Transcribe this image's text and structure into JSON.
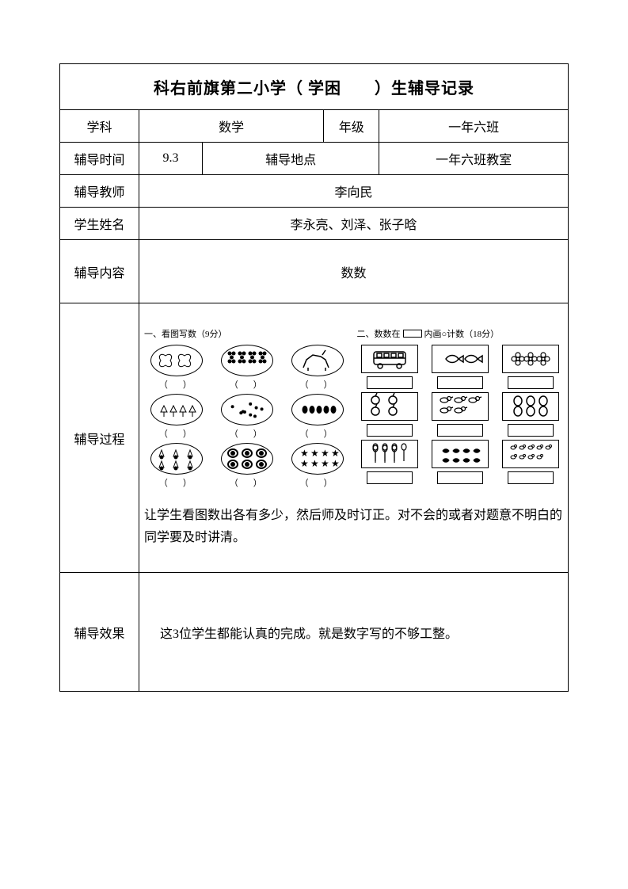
{
  "title": "科右前旗第二小学（ 学困　　）生辅导记录",
  "rows": {
    "subject": {
      "label": "学科",
      "value": "数学"
    },
    "grade": {
      "label": "年级",
      "value": "一年六班"
    },
    "time": {
      "label": "辅导时间",
      "value": "9.3"
    },
    "place": {
      "label": "辅导地点",
      "value": "一年六班教室"
    },
    "teacher": {
      "label": "辅导教师",
      "value": "李向民"
    },
    "student": {
      "label": "学生姓名",
      "value": "李永亮、刘泽、张子晗"
    },
    "content": {
      "label": "辅导内容",
      "value": "数数"
    },
    "process": {
      "label": "辅导过程",
      "section1_title": "一、看图写数（9分）",
      "section2_title_a": "二、数数在",
      "section2_title_b": "内画○计数（18分）",
      "caption": "（　）",
      "text": "让学生看图数出各有多少，然后师及时订正。对不会的或者对题意不明白的同学要及时讲清。"
    },
    "result": {
      "label": "辅导效果",
      "value": "这3位学生都能认真的完成。就是数字写的不够工整。"
    }
  },
  "styling": {
    "page_bg": "#ffffff",
    "border_color": "#000000",
    "font_family": "SimSun",
    "title_fontsize": 20,
    "body_fontsize": 16,
    "ws_fontsize": 11
  },
  "worksheet": {
    "ovals": [
      {
        "icon": "butterflies"
      },
      {
        "icon": "grapes"
      },
      {
        "icon": "horse"
      },
      {
        "icon": "chicks"
      },
      {
        "icon": "scatter"
      },
      {
        "icon": "dots5"
      },
      {
        "icon": "shuttlecocks"
      },
      {
        "icon": "ovals6"
      },
      {
        "icon": "stars8"
      }
    ],
    "rects": [
      {
        "icon": "bus"
      },
      {
        "icon": "fish"
      },
      {
        "icon": "flowers"
      },
      {
        "icon": "apples"
      },
      {
        "icon": "birds"
      },
      {
        "icon": "eggs"
      },
      {
        "icon": "balloons"
      },
      {
        "icon": "fishschool"
      },
      {
        "icon": "ducks"
      }
    ]
  }
}
